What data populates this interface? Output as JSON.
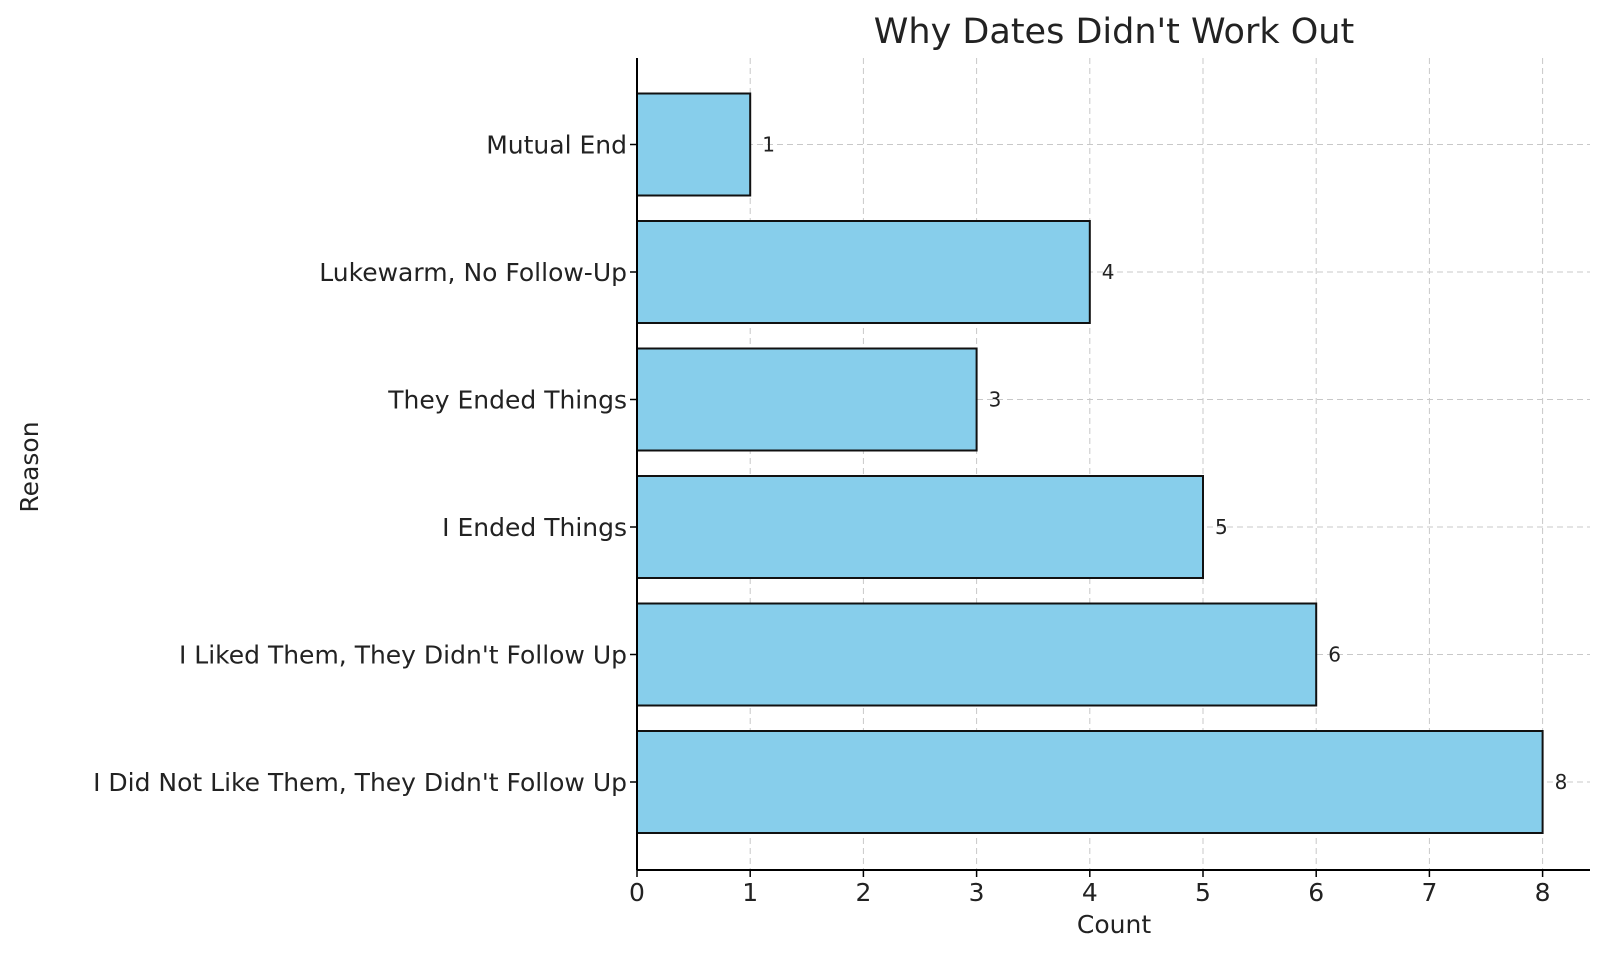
{
  "chart_data": {
    "type": "bar",
    "orientation": "horizontal",
    "title": "Why Dates Didn't Work Out",
    "xlabel": "Count",
    "ylabel": "Reason",
    "categories": [
      "I Did Not Like Them, They Didn't Follow Up",
      "I Liked Them, They Didn't Follow Up",
      "I Ended Things",
      "They Ended Things",
      "Lukewarm, No Follow-Up",
      "Mutual End"
    ],
    "values": [
      8,
      6,
      5,
      3,
      4,
      1
    ],
    "data_labels": [
      "8",
      "6",
      "5",
      "3",
      "4",
      "1"
    ],
    "xlim": [
      0,
      8.4
    ],
    "xticks": [
      0,
      1,
      2,
      3,
      4,
      5,
      6,
      7,
      8
    ],
    "xtick_labels": [
      "0",
      "1",
      "2",
      "3",
      "4",
      "5",
      "6",
      "7",
      "8"
    ],
    "grid": true,
    "legend": "none",
    "colors": {
      "bar_fill": "#87ceeb",
      "bar_edge": "#111111",
      "grid": "#c8c8c8",
      "axis": "#000000",
      "text": "#222222"
    }
  }
}
